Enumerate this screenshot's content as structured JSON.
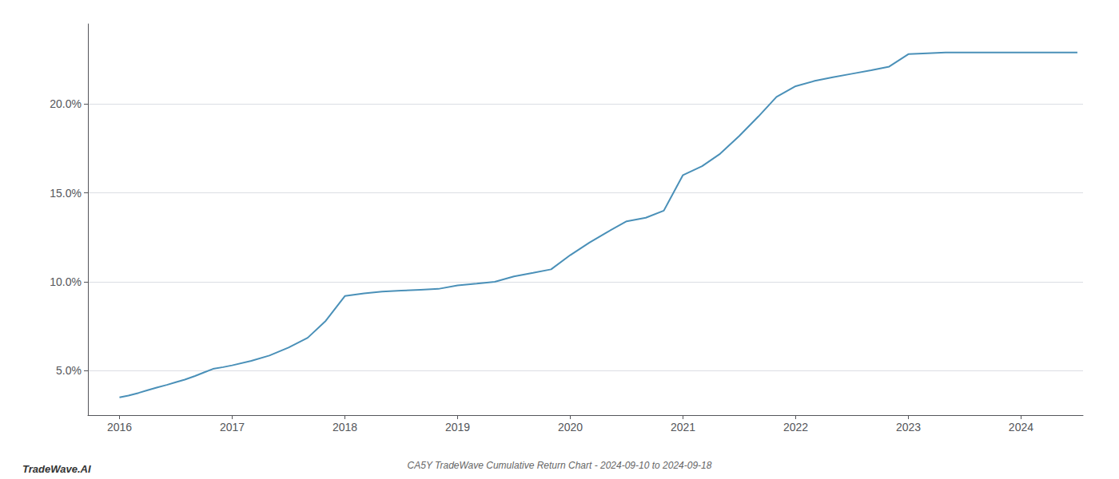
{
  "chart_data": {
    "type": "line",
    "title": "CA5Y TradeWave Cumulative Return Chart - 2024-09-10 to 2024-09-18",
    "annotations": [
      "TradeWave.AI"
    ],
    "color": "#4a90b8",
    "x": [
      2016.0,
      2016.08,
      2016.17,
      2016.25,
      2016.33,
      2016.42,
      2016.5,
      2016.58,
      2016.67,
      2016.75,
      2016.83,
      2016.92,
      2017.0,
      2017.17,
      2017.33,
      2017.5,
      2017.67,
      2017.83,
      2018.0,
      2018.17,
      2018.33,
      2018.5,
      2018.67,
      2018.83,
      2019.0,
      2019.17,
      2019.33,
      2019.5,
      2019.67,
      2019.83,
      2020.0,
      2020.17,
      2020.33,
      2020.5,
      2020.67,
      2020.83,
      2021.0,
      2021.17,
      2021.33,
      2021.5,
      2021.67,
      2021.83,
      2022.0,
      2022.17,
      2022.33,
      2022.5,
      2022.67,
      2022.83,
      2023.0,
      2023.17,
      2023.33,
      2023.5,
      2023.67,
      2023.83,
      2024.0,
      2024.17,
      2024.33,
      2024.5
    ],
    "values": [
      3.5,
      3.6,
      3.75,
      3.9,
      4.05,
      4.2,
      4.35,
      4.5,
      4.7,
      4.9,
      5.1,
      5.2,
      5.3,
      5.55,
      5.85,
      6.3,
      6.85,
      7.8,
      9.2,
      9.35,
      9.45,
      9.5,
      9.55,
      9.6,
      9.8,
      9.9,
      10.0,
      10.3,
      10.5,
      10.7,
      11.5,
      12.2,
      12.8,
      13.4,
      13.6,
      14.0,
      16.0,
      16.5,
      17.2,
      18.2,
      19.3,
      20.4,
      21.0,
      21.3,
      21.5,
      21.7,
      21.9,
      22.1,
      22.8,
      22.85,
      22.9,
      22.9,
      22.9,
      22.9,
      22.9,
      22.9,
      22.9,
      22.9
    ],
    "xlim": [
      2015.72,
      2024.55
    ],
    "ylim": [
      2.5,
      24.5
    ],
    "xticks": [
      2016,
      2017,
      2018,
      2019,
      2020,
      2021,
      2022,
      2023,
      2024
    ],
    "yticks": [
      {
        "value": 5.0,
        "label": "5.0%"
      },
      {
        "value": 10.0,
        "label": "10.0%"
      },
      {
        "value": 15.0,
        "label": "15.0%"
      },
      {
        "value": 20.0,
        "label": "20.0%"
      }
    ],
    "grid": true
  }
}
